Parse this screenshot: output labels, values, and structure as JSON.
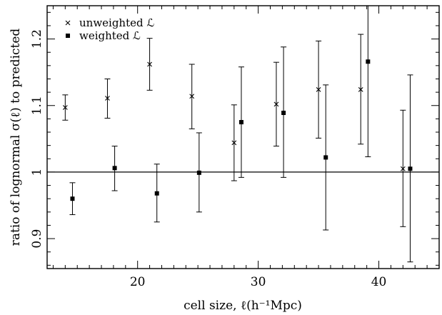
{
  "chart_data": {
    "type": "scatter",
    "title": "",
    "xlabel": "cell size, ℓ(h⁻¹Mpc)",
    "ylabel": "ratio of lognormal σ(ℓ) to predicted",
    "xlim": [
      12.5,
      45
    ],
    "ylim": [
      0.855,
      1.25
    ],
    "x_ticks": [
      20,
      30,
      40
    ],
    "x_tick_labels": [
      "20",
      "30",
      "40"
    ],
    "y_ticks": [
      0.9,
      1.0,
      1.1,
      1.2
    ],
    "y_tick_labels": [
      "0.9",
      "1",
      "1.1",
      "1.2"
    ],
    "reference_line_y": 1.0,
    "grid": false,
    "legend_position": "top-left",
    "series": [
      {
        "name": "unweighted ℒ",
        "marker": "cross",
        "points": [
          {
            "x": 14.0,
            "y": 1.097,
            "low": 1.078,
            "high": 1.116
          },
          {
            "x": 17.5,
            "y": 1.111,
            "low": 1.081,
            "high": 1.14
          },
          {
            "x": 21.0,
            "y": 1.162,
            "low": 1.123,
            "high": 1.201
          },
          {
            "x": 24.5,
            "y": 1.114,
            "low": 1.065,
            "high": 1.162
          },
          {
            "x": 28.0,
            "y": 1.044,
            "low": 0.987,
            "high": 1.101
          },
          {
            "x": 31.5,
            "y": 1.102,
            "low": 1.039,
            "high": 1.165
          },
          {
            "x": 35.0,
            "y": 1.124,
            "low": 1.051,
            "high": 1.197
          },
          {
            "x": 38.5,
            "y": 1.124,
            "low": 1.042,
            "high": 1.207
          },
          {
            "x": 42.0,
            "y": 1.005,
            "low": 0.918,
            "high": 1.093
          }
        ]
      },
      {
        "name": "weighted ℒ",
        "marker": "square",
        "points": [
          {
            "x": 14.6,
            "y": 0.96,
            "low": 0.936,
            "high": 0.984
          },
          {
            "x": 18.1,
            "y": 1.006,
            "low": 0.972,
            "high": 1.039
          },
          {
            "x": 21.6,
            "y": 0.968,
            "low": 0.925,
            "high": 1.012
          },
          {
            "x": 25.1,
            "y": 0.999,
            "low": 0.94,
            "high": 1.059
          },
          {
            "x": 28.6,
            "y": 1.075,
            "low": 0.992,
            "high": 1.158
          },
          {
            "x": 32.1,
            "y": 1.089,
            "low": 0.992,
            "high": 1.188
          },
          {
            "x": 35.6,
            "y": 1.022,
            "low": 0.913,
            "high": 1.131
          },
          {
            "x": 39.1,
            "y": 1.166,
            "low": 1.023,
            "high": 1.26
          },
          {
            "x": 42.6,
            "y": 1.005,
            "low": 0.865,
            "high": 1.146
          }
        ]
      }
    ]
  }
}
